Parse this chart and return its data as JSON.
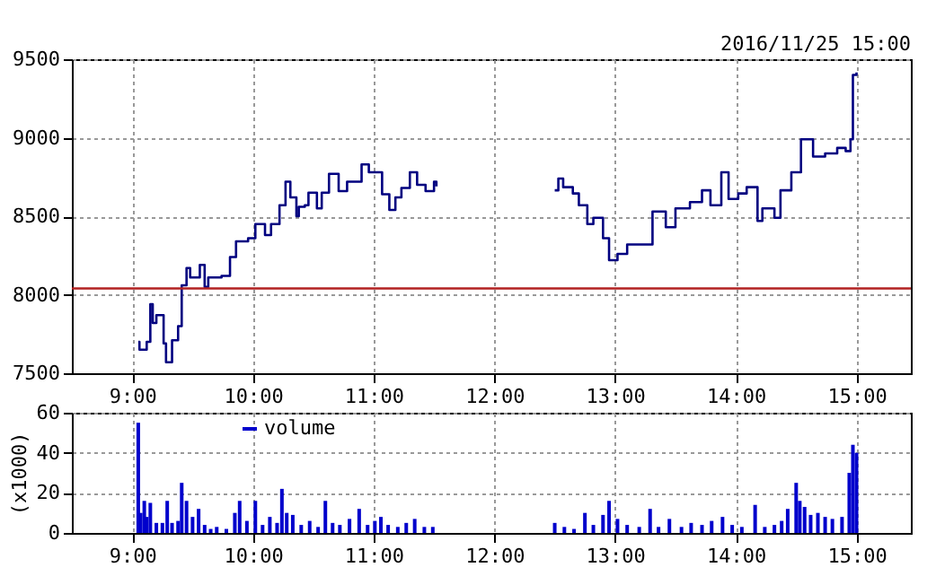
{
  "chart_data": [
    {
      "type": "step",
      "subtitle": "2016/11/25 15:00",
      "xlim": [
        8.5,
        15.45
      ],
      "xticks": [
        {
          "value": 9,
          "label": "9:00"
        },
        {
          "value": 10,
          "label": "10:00"
        },
        {
          "value": 11,
          "label": "11:00"
        },
        {
          "value": 12,
          "label": "12:00"
        },
        {
          "value": 13,
          "label": "13:00"
        },
        {
          "value": 14,
          "label": "14:00"
        },
        {
          "value": 15,
          "label": "15:00"
        }
      ],
      "ylim": [
        7500,
        9500
      ],
      "yticks": [
        7500,
        8000,
        8500,
        9000,
        9500
      ],
      "grid": true,
      "ref_lines": [
        {
          "axis": "y",
          "value": 8040,
          "color": "#b22222"
        }
      ],
      "series": [
        {
          "color": "#000080",
          "x": [
            9.05,
            9.06,
            9.12,
            9.15,
            9.17,
            9.2,
            9.26,
            9.28,
            9.3,
            9.33,
            9.38,
            9.41,
            9.45,
            9.48,
            9.56,
            9.6,
            9.63,
            9.74,
            9.81,
            9.86,
            9.96,
            10.02,
            10.1,
            10.15,
            10.22,
            10.27,
            10.31,
            10.36,
            10.38,
            10.43,
            10.46,
            10.53,
            10.57,
            10.63,
            10.71,
            10.78,
            10.9,
            10.96,
            11.03,
            11.07,
            11.13,
            11.18,
            11.23,
            11.3,
            11.36,
            11.43,
            11.5,
            11.52,
            12.0,
            12.5,
            12.53,
            12.57,
            12.65,
            12.7,
            12.77,
            12.82,
            12.9,
            12.95,
            13.02,
            13.1,
            13.22,
            13.31,
            13.42,
            13.5,
            13.62,
            13.72,
            13.79,
            13.88,
            13.94,
            14.02,
            14.09,
            14.18,
            14.22,
            14.32,
            14.37,
            14.46,
            14.54,
            14.64,
            14.74,
            14.84,
            14.91,
            14.95,
            14.97,
            15.0
          ],
          "values": [
            7700,
            7650,
            7700,
            7940,
            7820,
            7870,
            7690,
            7570,
            7570,
            7710,
            7800,
            8060,
            8170,
            8110,
            8190,
            8050,
            8110,
            8120,
            8240,
            8340,
            8360,
            8450,
            8380,
            8450,
            8570,
            8720,
            8620,
            8500,
            8560,
            8570,
            8650,
            8550,
            8650,
            8770,
            8660,
            8720,
            8830,
            8780,
            8780,
            8640,
            8540,
            8620,
            8680,
            8780,
            8700,
            8660,
            8720,
            8690,
            null,
            8665,
            8740,
            8685,
            8645,
            8570,
            8450,
            8490,
            8360,
            8220,
            8260,
            8320,
            8320,
            8530,
            8430,
            8550,
            8590,
            8665,
            8570,
            8780,
            8610,
            8645,
            8685,
            8470,
            8550,
            8490,
            8665,
            8780,
            8990,
            8880,
            8900,
            8935,
            8915,
            8990,
            9400,
            9415
          ]
        }
      ]
    },
    {
      "type": "bar",
      "ylabel": "(x1000)",
      "legend": "top left",
      "grid": true,
      "xlim": [
        8.5,
        15.45
      ],
      "xticks": [
        {
          "value": 9,
          "label": "9:00"
        },
        {
          "value": 10,
          "label": "10:00"
        },
        {
          "value": 11,
          "label": "11:00"
        },
        {
          "value": 12,
          "label": "12:00"
        },
        {
          "value": 13,
          "label": "13:00"
        },
        {
          "value": 14,
          "label": "14:00"
        },
        {
          "value": 15,
          "label": "15:00"
        }
      ],
      "ylim": [
        0,
        60
      ],
      "yticks": [
        0,
        20,
        40,
        60
      ],
      "series": [
        {
          "name": "volume",
          "color": "#0000cc",
          "x": [
            9.05,
            9.07,
            9.1,
            9.12,
            9.15,
            9.2,
            9.25,
            9.29,
            9.33,
            9.38,
            9.41,
            9.45,
            9.5,
            9.55,
            9.6,
            9.65,
            9.7,
            9.78,
            9.85,
            9.89,
            9.95,
            10.02,
            10.08,
            10.14,
            10.2,
            10.24,
            10.28,
            10.33,
            10.4,
            10.47,
            10.54,
            10.6,
            10.66,
            10.72,
            10.8,
            10.88,
            10.95,
            11.01,
            11.06,
            11.12,
            11.2,
            11.27,
            11.34,
            11.42,
            11.49,
            12.5,
            12.58,
            12.66,
            12.75,
            12.82,
            12.9,
            12.95,
            13.02,
            13.1,
            13.2,
            13.29,
            13.36,
            13.45,
            13.55,
            13.63,
            13.72,
            13.8,
            13.89,
            13.97,
            14.05,
            14.16,
            14.24,
            14.32,
            14.38,
            14.43,
            14.5,
            14.53,
            14.57,
            14.62,
            14.68,
            14.74,
            14.8,
            14.88,
            14.94,
            14.97,
            15.0
          ],
          "values": [
            55,
            10,
            16,
            8,
            15,
            5,
            5,
            16,
            5,
            6,
            25,
            16,
            8,
            12,
            4,
            2,
            3,
            2,
            10,
            16,
            6,
            16,
            4,
            8,
            5,
            22,
            10,
            9,
            4,
            6,
            3,
            16,
            5,
            4,
            7,
            12,
            4,
            6,
            8,
            4,
            3,
            5,
            7,
            3,
            3,
            5,
            3,
            2,
            10,
            4,
            9,
            16,
            7,
            4,
            3,
            12,
            3,
            7,
            3,
            5,
            4,
            6,
            8,
            4,
            3,
            14,
            3,
            4,
            6,
            12,
            25,
            16,
            13,
            9,
            10,
            8,
            7,
            8,
            30,
            44,
            40
          ]
        }
      ]
    }
  ]
}
